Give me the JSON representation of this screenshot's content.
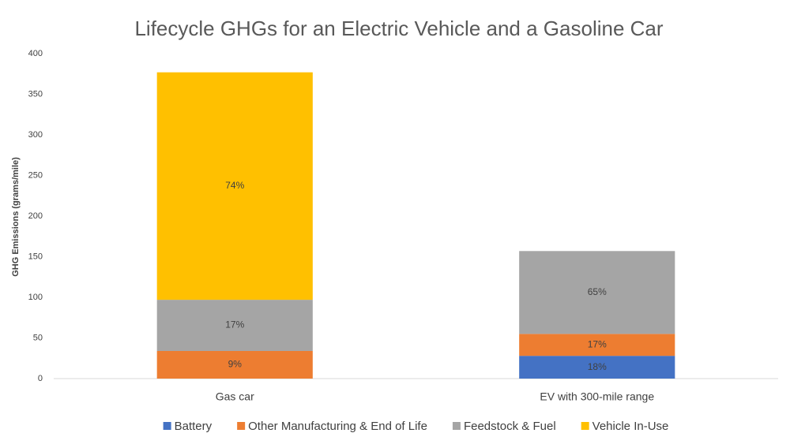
{
  "chart_data": {
    "type": "stacked_bar",
    "title": "Lifecycle GHGs for an Electric Vehicle and a Gasoline Car",
    "y_label": "GHG Emissions (grams/mile)",
    "categories": [
      "Gas car",
      "EV with 300-mile range"
    ],
    "series": [
      {
        "name": "Battery",
        "color": "#4472c4",
        "values": [
          0,
          28
        ],
        "value_labels": [
          null,
          "18%"
        ]
      },
      {
        "name": "Other Manufacturing & End of Life",
        "color": "#ed7d31",
        "values": [
          34,
          27
        ],
        "value_labels": [
          "9%",
          "17%"
        ]
      },
      {
        "name": "Feedstock & Fuel",
        "color": "#a5a5a5",
        "values": [
          63,
          102
        ],
        "value_labels": [
          "17%",
          "65%"
        ]
      },
      {
        "name": "Vehicle In-Use",
        "color": "#ffc000",
        "values": [
          280,
          0
        ],
        "value_labels": [
          "74%",
          null
        ]
      }
    ],
    "ylim": [
      0,
      400
    ],
    "yticks": [
      0,
      50,
      100,
      150,
      200,
      250,
      300,
      350,
      400
    ],
    "grid": false,
    "legend": "bottom"
  }
}
